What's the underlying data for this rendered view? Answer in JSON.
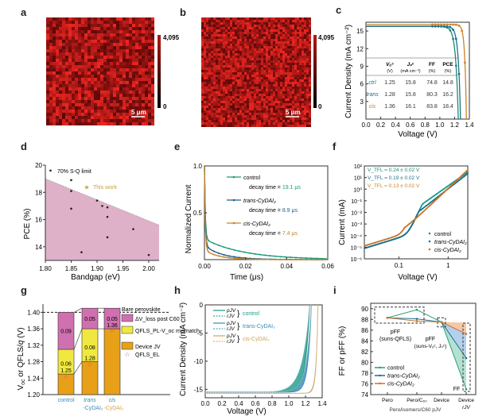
{
  "panel_labels": [
    "a",
    "b",
    "c",
    "d",
    "e",
    "f",
    "g",
    "h",
    "i"
  ],
  "chart_data": [
    {
      "id": "a",
      "type": "heatmap",
      "title": "",
      "colorbar": {
        "min": "0",
        "max": "4,095",
        "colors": [
          "#000000",
          "#c8201e"
        ]
      },
      "scalebar": "5 μm"
    },
    {
      "id": "b",
      "type": "heatmap",
      "title": "",
      "colorbar": {
        "min": "0",
        "max": "4,095",
        "colors": [
          "#000000",
          "#c8201e"
        ]
      },
      "scalebar": "5 μm"
    },
    {
      "id": "c",
      "type": "line",
      "xlabel": "Voltage (V)",
      "ylabel": "Current Density (mA cm⁻²)",
      "xlim": [
        0,
        1.4
      ],
      "ylim": [
        0,
        16.5
      ],
      "xticks": [
        "0.0",
        "0.2",
        "0.4",
        "0.6",
        "0.8",
        "1.0",
        "1.2",
        "1.4"
      ],
      "yticks": [
        "3",
        "6",
        "9",
        "12",
        "15"
      ],
      "series": [
        {
          "name": "ctrl",
          "color": "#1a8a7a",
          "voc": 1.25,
          "jsc": 15.8
        },
        {
          "name": "trans",
          "color": "#1f6f8b",
          "voc": 1.28,
          "jsc": 15.8
        },
        {
          "name": "cis",
          "color": "#c8842a",
          "voc": 1.36,
          "jsc": 16.1
        }
      ],
      "table": {
        "headers": [
          "",
          "Voc (V)",
          "Jsc (mA cm⁻²)",
          "FF (%)",
          "PCE (%)"
        ],
        "rows": [
          [
            "ctrl",
            "1.25",
            "15.8",
            "74.8",
            "14.8"
          ],
          [
            "trans",
            "1.28",
            "15.8",
            "80.3",
            "16.2"
          ],
          [
            "cis",
            "1.36",
            "16.1",
            "83.8",
            "18.4"
          ]
        ]
      }
    },
    {
      "id": "d",
      "type": "scatter",
      "xlabel": "Bandgap (eV)",
      "ylabel": "PCE (%)",
      "xlim": [
        1.8,
        2.02
      ],
      "ylim": [
        13,
        20
      ],
      "xticks": [
        "1.80",
        "1.85",
        "1.90",
        "1.95",
        "2.00"
      ],
      "yticks": [
        "14",
        "16",
        "18",
        "20"
      ],
      "sq_limit_label": "70% S-Q limit",
      "sq_limit_line": [
        [
          1.8,
          19.0
        ],
        [
          2.02,
          15.6
        ]
      ],
      "fill_color": "#d9a3c0",
      "points": [
        [
          1.81,
          19.6
        ],
        [
          1.85,
          18.9
        ],
        [
          1.85,
          18.1
        ],
        [
          1.85,
          16.8
        ],
        [
          1.87,
          13.6
        ],
        [
          1.9,
          17.4
        ],
        [
          1.91,
          17.0
        ],
        [
          1.92,
          16.9
        ],
        [
          1.92,
          16.2
        ],
        [
          1.92,
          14.7
        ],
        [
          1.97,
          15.3
        ],
        [
          2.0,
          13.4
        ]
      ],
      "this_work": {
        "label": "This work",
        "x": 1.88,
        "y": 18.4,
        "color": "#c8a040"
      }
    },
    {
      "id": "e",
      "type": "line",
      "xlabel": "Time (μs)",
      "ylabel": "Normalized Current",
      "xlim": [
        0,
        0.06
      ],
      "ylim": [
        0,
        1.0
      ],
      "xticks": [
        "0.00",
        "0.02",
        "0.04",
        "0.06"
      ],
      "yticks": [
        "0.5",
        "1.0"
      ],
      "series": [
        {
          "name": "control",
          "decay_label": "decay time = ",
          "decay_value": "19.1 μs",
          "color": "#1a9a7a",
          "tau": 0.0191
        },
        {
          "name": "trans-CyDAI₂",
          "decay_label": "decay time = ",
          "decay_value": "8.9 μs",
          "color": "#1f5f8b",
          "tau": 0.0089
        },
        {
          "name": "cis-CyDAI₂",
          "decay_label": "decay time = ",
          "decay_value": "7.4 μs",
          "color": "#c8842a",
          "tau": 0.0074
        }
      ]
    },
    {
      "id": "f",
      "type": "scatter",
      "xlabel": "Voltage (V)",
      "ylabel": "Current (mA)",
      "xscale": "log",
      "yscale": "log",
      "xlim": [
        0.02,
        2.5
      ],
      "ylim": [
        1e-06,
        100
      ],
      "xticks": [
        "0.1",
        "1"
      ],
      "yticks": [
        "10⁻⁶",
        "10⁻⁵",
        "10⁻⁴",
        "10⁻³",
        "10⁻²",
        "10⁻¹",
        "10⁰",
        "10¹",
        "10²"
      ],
      "annotations": [
        {
          "text": "V_TFL = 0.24 ± 0.02 V",
          "color": "#1a8a7a"
        },
        {
          "text": "V_TFL = 0.19 ± 0.02 V",
          "color": "#1f6f8b"
        },
        {
          "text": "V_TFL = 0.13 ± 0.02 V",
          "color": "#c8842a"
        }
      ],
      "series": [
        {
          "name": "control",
          "color": "#1a9a8a",
          "vtfl": 0.24
        },
        {
          "name": "trans-CyDAI₂",
          "color": "#1f6f8b",
          "vtfl": 0.19
        },
        {
          "name": "cis-CyDAI₂",
          "color": "#c8742a",
          "vtfl": 0.13
        }
      ]
    },
    {
      "id": "g",
      "type": "bar",
      "ylabel": "Voc or QFLS/q (V)",
      "ylim": [
        1.2,
        1.42
      ],
      "yticks": [
        "1.20",
        "1.24",
        "1.28",
        "1.32",
        "1.36",
        "1.40"
      ],
      "categories": [
        "control",
        "trans-CyDAI₂",
        "cis-CyDAI₂"
      ],
      "category_lines": [
        [
          "control",
          ""
        ],
        [
          "trans",
          "-CyDAI₂"
        ],
        [
          "cis",
          "-CyDAI₂"
        ]
      ],
      "bare_perovskite": 1.4,
      "series": [
        {
          "name": "Device JV",
          "color": "#e8a018",
          "values": [
            1.25,
            1.28,
            1.36
          ]
        },
        {
          "name": "QFLS_PL - V_oc mismatch",
          "color": "#f0e840",
          "values": [
            0.06,
            0.08,
            0.0
          ]
        },
        {
          "name": "ΔV_loss post C60",
          "color": "#d070b0",
          "values": [
            0.09,
            0.05,
            0.05
          ]
        }
      ],
      "bar_labels": [
        [
          "1.25",
          "0.06",
          "0.09"
        ],
        [
          "1.28",
          "0.08",
          "0.05"
        ],
        [
          "1.36",
          "",
          "0.05"
        ]
      ],
      "qfls_el": [
        1.243,
        1.273,
        1.357
      ],
      "legend": [
        "Bare perovskite",
        "ΔV_loss post C60",
        "QFLS_PL-V_oc mismatch",
        "Device JV",
        "QFLS_EL"
      ]
    },
    {
      "id": "h",
      "type": "line",
      "xlabel": "Voltage (V)",
      "ylabel": "Current Density (mA cm⁻²)",
      "xlim": [
        0,
        1.4
      ],
      "ylim": [
        -16.5,
        0
      ],
      "xticks": [
        "0.0",
        "0.2",
        "0.4",
        "0.6",
        "0.8",
        "1.0",
        "1.2",
        "1.4"
      ],
      "yticks": [
        "0",
        "-5",
        "-10",
        "-15"
      ],
      "series": [
        {
          "name": "control",
          "color": "#1a9a8a",
          "voc": 1.25,
          "jsc": -15.5
        },
        {
          "name": "trans-CyDAI₂",
          "color": "#3a8ab8",
          "voc": 1.27,
          "jsc": -15.5
        },
        {
          "name": "cis-CyDAI₂",
          "color": "#d8a050",
          "voc": 1.35,
          "jsc": -15.7
        }
      ],
      "legend": [
        [
          "pJV",
          "rJV",
          "control"
        ],
        [
          "pJV",
          "rJV",
          "trans-CyDAI₂"
        ],
        [
          "pJV",
          "rJV",
          "cis-CyDAI₂"
        ]
      ]
    },
    {
      "id": "i",
      "type": "line",
      "ylabel": "FF or pFF (%)",
      "ylim": [
        74,
        91
      ],
      "yticks": [
        "74",
        "76",
        "78",
        "80",
        "82",
        "84",
        "86",
        "88",
        "90"
      ],
      "categories": [
        "Pero",
        "Pero/C60",
        "Device",
        "Device"
      ],
      "category_sub": [
        "",
        "",
        "",
        "rJV"
      ],
      "xlabel": "Pero/isomers/C60 pJV",
      "series": [
        {
          "name": "control",
          "color": "#2a9a7a",
          "values": [
            88.3,
            89.8,
            87.5,
            75.0
          ]
        },
        {
          "name": "trans-CyDAI₂",
          "color": "#1f6f8b",
          "values": [
            88.3,
            88.1,
            87.5,
            80.8
          ]
        },
        {
          "name": "cis-CyDAI₂",
          "color": "#c8742a",
          "values": [
            88.3,
            87.7,
            87.5,
            85.3
          ]
        }
      ],
      "annotations": [
        "pFF (suns-QFLS)",
        "pFF (suns-V_oc, J_sc)",
        "FF"
      ]
    }
  ]
}
